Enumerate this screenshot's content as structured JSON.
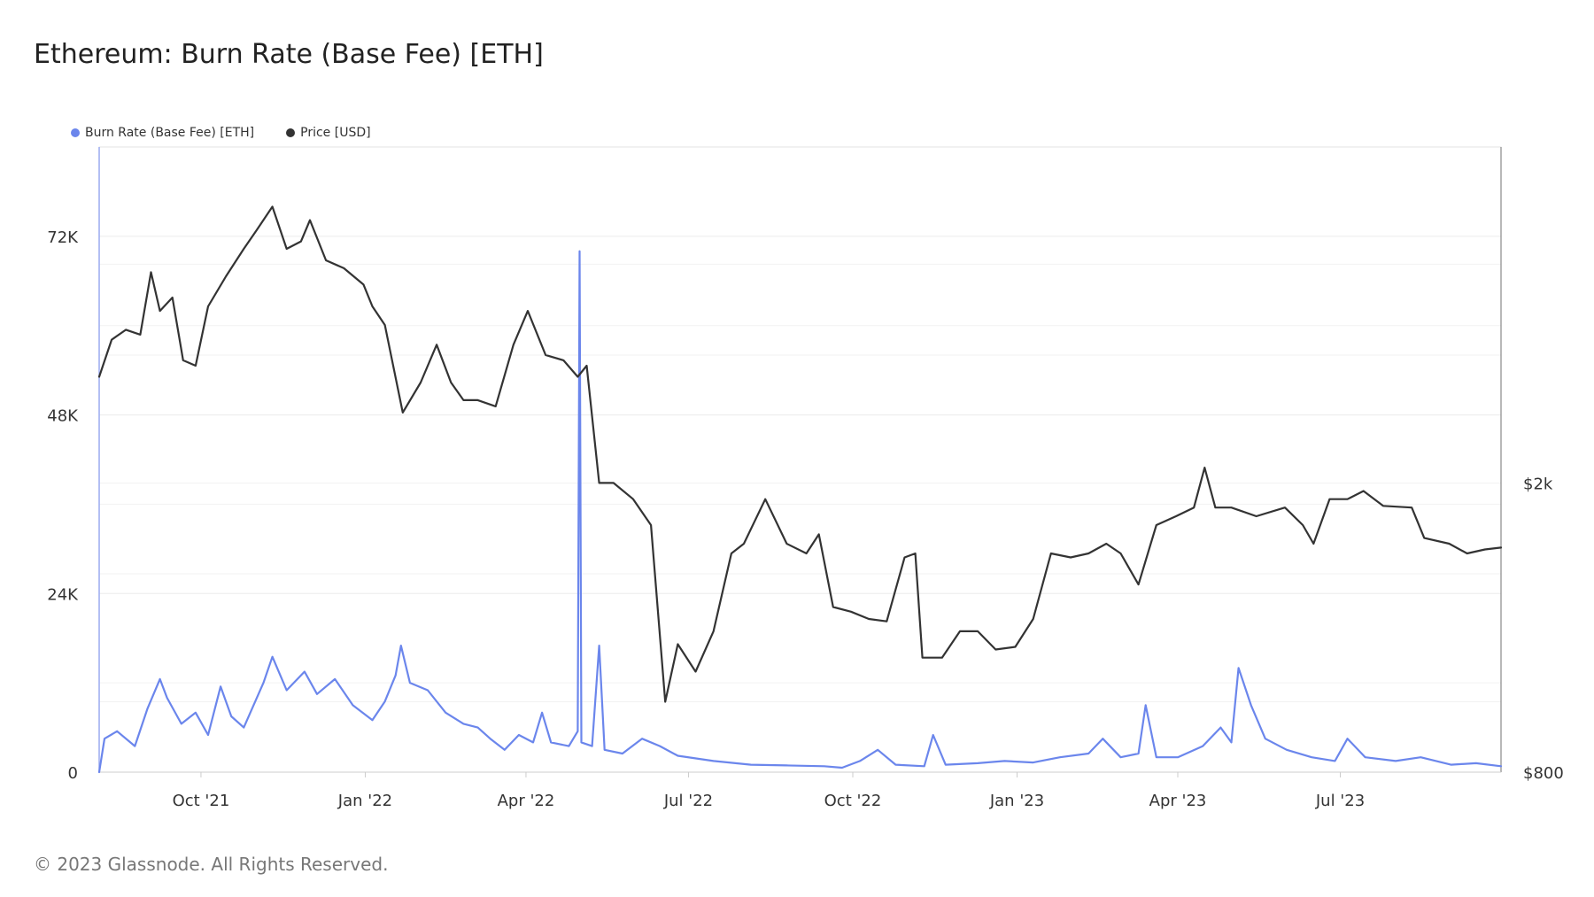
{
  "title": "Ethereum: Burn Rate (Base Fee) [ETH]",
  "copyright": "© 2023 Glassnode. All Rights Reserved.",
  "legend": [
    {
      "label": "Burn Rate (Base Fee) [ETH]",
      "color": "#6B86EC"
    },
    {
      "label": "Price [USD]",
      "color": "#333333"
    }
  ],
  "chart_data": {
    "type": "line",
    "x_ticks": [
      "Oct '21",
      "Jan '22",
      "Apr '22",
      "Jul '22",
      "Oct '22",
      "Jan '23",
      "Apr '23",
      "Jul '23"
    ],
    "x_tick_dates": [
      "2021-10-01",
      "2022-01-01",
      "2022-04-01",
      "2022-07-01",
      "2022-10-01",
      "2023-01-01",
      "2023-04-01",
      "2023-07-01"
    ],
    "x_range": [
      "2021-08-05",
      "2023-09-29"
    ],
    "left_axis": {
      "ticks": [
        "0",
        "24K",
        "48K",
        "72K"
      ],
      "tick_values": [
        0,
        24000,
        48000,
        72000
      ],
      "range": [
        0,
        84000
      ]
    },
    "right_axis": {
      "ticks": [
        "$800",
        "$2k"
      ],
      "tick_values": [
        800,
        2000
      ],
      "scale": "log",
      "range": [
        800,
        5800
      ]
    },
    "grid": true,
    "legend_position": "top-left",
    "series": [
      {
        "name": "Burn Rate (Base Fee) [ETH]",
        "axis": "left",
        "color": "#6B86EC",
        "points": [
          [
            "2021-08-05",
            0
          ],
          [
            "2021-08-08",
            4500
          ],
          [
            "2021-08-15",
            5500
          ],
          [
            "2021-08-25",
            3500
          ],
          [
            "2021-09-01",
            8500
          ],
          [
            "2021-09-08",
            12500
          ],
          [
            "2021-09-12",
            10000
          ],
          [
            "2021-09-20",
            6500
          ],
          [
            "2021-09-28",
            8000
          ],
          [
            "2021-10-05",
            5000
          ],
          [
            "2021-10-12",
            11500
          ],
          [
            "2021-10-18",
            7500
          ],
          [
            "2021-10-25",
            6000
          ],
          [
            "2021-11-05",
            12000
          ],
          [
            "2021-11-10",
            15500
          ],
          [
            "2021-11-18",
            11000
          ],
          [
            "2021-11-28",
            13500
          ],
          [
            "2021-12-05",
            10500
          ],
          [
            "2021-12-15",
            12500
          ],
          [
            "2021-12-25",
            9000
          ],
          [
            "2022-01-05",
            7000
          ],
          [
            "2022-01-12",
            9500
          ],
          [
            "2022-01-18",
            13000
          ],
          [
            "2022-01-21",
            17000
          ],
          [
            "2022-01-26",
            12000
          ],
          [
            "2022-02-05",
            11000
          ],
          [
            "2022-02-15",
            8000
          ],
          [
            "2022-02-25",
            6500
          ],
          [
            "2022-03-05",
            6000
          ],
          [
            "2022-03-12",
            4500
          ],
          [
            "2022-03-20",
            3000
          ],
          [
            "2022-03-28",
            5000
          ],
          [
            "2022-04-05",
            4000
          ],
          [
            "2022-04-10",
            8000
          ],
          [
            "2022-04-15",
            4000
          ],
          [
            "2022-04-25",
            3500
          ],
          [
            "2022-04-30",
            5500
          ],
          [
            "2022-05-01",
            70000
          ],
          [
            "2022-05-02",
            4000
          ],
          [
            "2022-05-08",
            3500
          ],
          [
            "2022-05-12",
            17000
          ],
          [
            "2022-05-15",
            3000
          ],
          [
            "2022-05-25",
            2500
          ],
          [
            "2022-06-05",
            4500
          ],
          [
            "2022-06-15",
            3500
          ],
          [
            "2022-06-25",
            2200
          ],
          [
            "2022-07-15",
            1500
          ],
          [
            "2022-08-05",
            1000
          ],
          [
            "2022-08-25",
            900
          ],
          [
            "2022-09-15",
            800
          ],
          [
            "2022-09-25",
            600
          ],
          [
            "2022-10-05",
            1500
          ],
          [
            "2022-10-15",
            3000
          ],
          [
            "2022-10-25",
            1000
          ],
          [
            "2022-11-10",
            800
          ],
          [
            "2022-11-15",
            5000
          ],
          [
            "2022-11-22",
            1000
          ],
          [
            "2022-12-10",
            1200
          ],
          [
            "2022-12-25",
            1500
          ],
          [
            "2023-01-10",
            1300
          ],
          [
            "2023-01-25",
            2000
          ],
          [
            "2023-02-10",
            2500
          ],
          [
            "2023-02-18",
            4500
          ],
          [
            "2023-02-28",
            2000
          ],
          [
            "2023-03-10",
            2500
          ],
          [
            "2023-03-14",
            9000
          ],
          [
            "2023-03-20",
            2000
          ],
          [
            "2023-04-01",
            2000
          ],
          [
            "2023-04-15",
            3500
          ],
          [
            "2023-04-25",
            6000
          ],
          [
            "2023-05-01",
            4000
          ],
          [
            "2023-05-05",
            14000
          ],
          [
            "2023-05-12",
            9000
          ],
          [
            "2023-05-20",
            4500
          ],
          [
            "2023-06-01",
            3000
          ],
          [
            "2023-06-15",
            2000
          ],
          [
            "2023-06-28",
            1500
          ],
          [
            "2023-07-05",
            4500
          ],
          [
            "2023-07-15",
            2000
          ],
          [
            "2023-08-01",
            1500
          ],
          [
            "2023-08-15",
            2000
          ],
          [
            "2023-09-01",
            1000
          ],
          [
            "2023-09-15",
            1200
          ],
          [
            "2023-09-29",
            800
          ]
        ]
      },
      {
        "name": "Price [USD]",
        "axis": "right",
        "color": "#333333",
        "points": [
          [
            "2021-08-05",
            2800
          ],
          [
            "2021-08-12",
            3150
          ],
          [
            "2021-08-20",
            3250
          ],
          [
            "2021-08-28",
            3200
          ],
          [
            "2021-09-03",
            3900
          ],
          [
            "2021-09-08",
            3450
          ],
          [
            "2021-09-15",
            3600
          ],
          [
            "2021-09-21",
            2950
          ],
          [
            "2021-09-28",
            2900
          ],
          [
            "2021-10-05",
            3500
          ],
          [
            "2021-10-15",
            3850
          ],
          [
            "2021-10-25",
            4200
          ],
          [
            "2021-11-01",
            4450
          ],
          [
            "2021-11-10",
            4800
          ],
          [
            "2021-11-18",
            4200
          ],
          [
            "2021-11-26",
            4300
          ],
          [
            "2021-12-01",
            4600
          ],
          [
            "2021-12-10",
            4050
          ],
          [
            "2021-12-20",
            3950
          ],
          [
            "2021-12-31",
            3750
          ],
          [
            "2022-01-05",
            3500
          ],
          [
            "2022-01-12",
            3300
          ],
          [
            "2022-01-22",
            2500
          ],
          [
            "2022-02-01",
            2750
          ],
          [
            "2022-02-10",
            3100
          ],
          [
            "2022-02-18",
            2750
          ],
          [
            "2022-02-25",
            2600
          ],
          [
            "2022-03-05",
            2600
          ],
          [
            "2022-03-15",
            2550
          ],
          [
            "2022-03-25",
            3100
          ],
          [
            "2022-04-02",
            3450
          ],
          [
            "2022-04-12",
            3000
          ],
          [
            "2022-04-22",
            2950
          ],
          [
            "2022-04-30",
            2800
          ],
          [
            "2022-05-05",
            2900
          ],
          [
            "2022-05-12",
            2000
          ],
          [
            "2022-05-20",
            2000
          ],
          [
            "2022-05-31",
            1900
          ],
          [
            "2022-06-10",
            1750
          ],
          [
            "2022-06-18",
            1000
          ],
          [
            "2022-06-25",
            1200
          ],
          [
            "2022-07-05",
            1100
          ],
          [
            "2022-07-15",
            1250
          ],
          [
            "2022-07-25",
            1600
          ],
          [
            "2022-08-01",
            1650
          ],
          [
            "2022-08-13",
            1900
          ],
          [
            "2022-08-25",
            1650
          ],
          [
            "2022-09-05",
            1600
          ],
          [
            "2022-09-12",
            1700
          ],
          [
            "2022-09-20",
            1350
          ],
          [
            "2022-09-30",
            1330
          ],
          [
            "2022-10-10",
            1300
          ],
          [
            "2022-10-20",
            1290
          ],
          [
            "2022-10-30",
            1580
          ],
          [
            "2022-11-05",
            1600
          ],
          [
            "2022-11-09",
            1150
          ],
          [
            "2022-11-20",
            1150
          ],
          [
            "2022-11-30",
            1250
          ],
          [
            "2022-12-10",
            1250
          ],
          [
            "2022-12-20",
            1180
          ],
          [
            "2022-12-31",
            1190
          ],
          [
            "2023-01-10",
            1300
          ],
          [
            "2023-01-20",
            1600
          ],
          [
            "2023-01-31",
            1580
          ],
          [
            "2023-02-10",
            1600
          ],
          [
            "2023-02-20",
            1650
          ],
          [
            "2023-02-28",
            1600
          ],
          [
            "2023-03-10",
            1450
          ],
          [
            "2023-03-20",
            1750
          ],
          [
            "2023-03-31",
            1800
          ],
          [
            "2023-04-10",
            1850
          ],
          [
            "2023-04-16",
            2100
          ],
          [
            "2023-04-22",
            1850
          ],
          [
            "2023-05-01",
            1850
          ],
          [
            "2023-05-15",
            1800
          ],
          [
            "2023-05-31",
            1850
          ],
          [
            "2023-06-10",
            1750
          ],
          [
            "2023-06-16",
            1650
          ],
          [
            "2023-06-25",
            1900
          ],
          [
            "2023-07-05",
            1900
          ],
          [
            "2023-07-14",
            1950
          ],
          [
            "2023-07-25",
            1860
          ],
          [
            "2023-08-10",
            1850
          ],
          [
            "2023-08-17",
            1680
          ],
          [
            "2023-08-31",
            1650
          ],
          [
            "2023-09-10",
            1600
          ],
          [
            "2023-09-20",
            1620
          ],
          [
            "2023-09-29",
            1630
          ]
        ]
      }
    ]
  }
}
